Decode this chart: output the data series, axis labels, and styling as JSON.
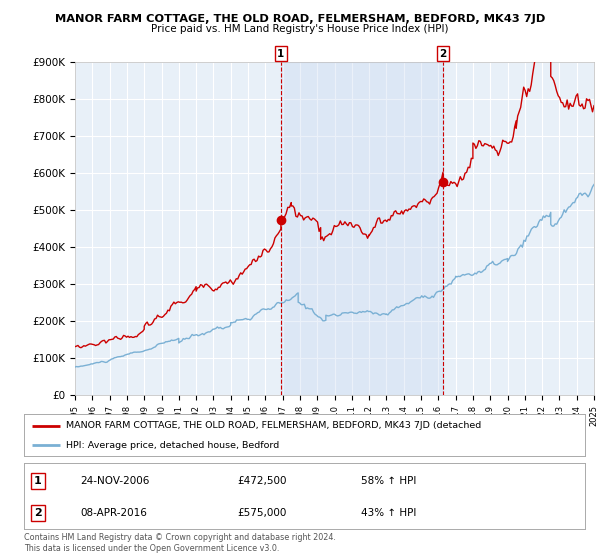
{
  "title": "MANOR FARM COTTAGE, THE OLD ROAD, FELMERSHAM, BEDFORD, MK43 7JD",
  "subtitle": "Price paid vs. HM Land Registry's House Price Index (HPI)",
  "legend_line1": "MANOR FARM COTTAGE, THE OLD ROAD, FELMERSHAM, BEDFORD, MK43 7JD (detached",
  "legend_line2": "HPI: Average price, detached house, Bedford",
  "footer": "Contains HM Land Registry data © Crown copyright and database right 2024.\nThis data is licensed under the Open Government Licence v3.0.",
  "sale1_date": "24-NOV-2006",
  "sale1_price": "£472,500",
  "sale1_hpi": "58% ↑ HPI",
  "sale1_year": 2006.9,
  "sale1_value": 472500,
  "sale2_date": "08-APR-2016",
  "sale2_price": "£575,000",
  "sale2_hpi": "43% ↑ HPI",
  "sale2_year": 2016.27,
  "sale2_value": 575000,
  "ylim": [
    0,
    900000
  ],
  "xlim": [
    1995.0,
    2025.0
  ],
  "red_color": "#cc0000",
  "blue_color": "#7ab0d4",
  "shade_color": "#ddeeff",
  "plot_bg": "#e8f0f8",
  "grid_color": "#ffffff",
  "yticks": [
    0,
    100000,
    200000,
    300000,
    400000,
    500000,
    600000,
    700000,
    800000,
    900000
  ],
  "ytick_labels": [
    "£0",
    "£100K",
    "£200K",
    "£300K",
    "£400K",
    "£500K",
    "£600K",
    "£700K",
    "£800K",
    "£900K"
  ]
}
